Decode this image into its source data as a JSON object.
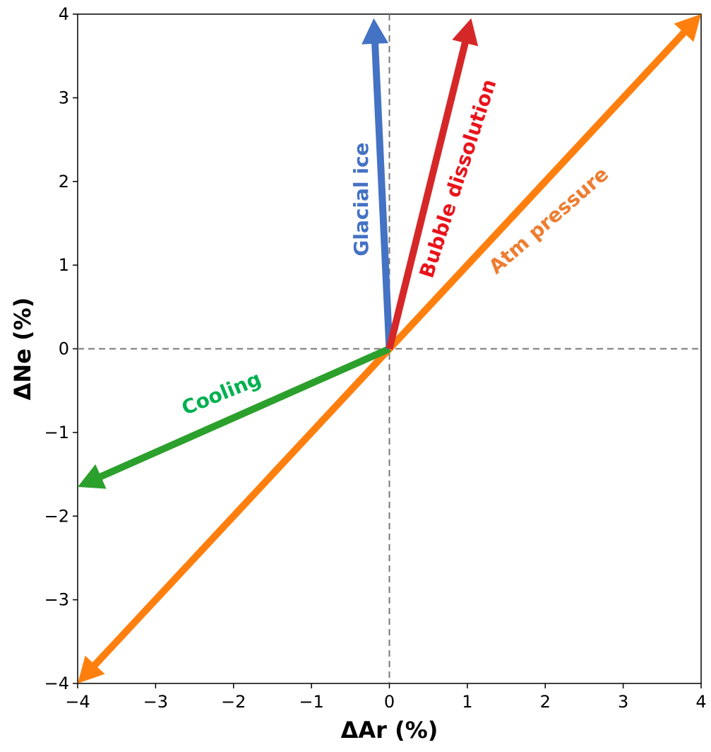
{
  "chart_data": {
    "type": "vector",
    "xlabel": "ΔAr (%)",
    "ylabel": "ΔNe (%)",
    "xlim": [
      -4,
      4
    ],
    "ylim": [
      -4,
      4
    ],
    "x_ticks": [
      "−4",
      "−3",
      "−2",
      "−1",
      "0",
      "1",
      "2",
      "3",
      "4"
    ],
    "y_ticks": [
      "−4",
      "−3",
      "−2",
      "−1",
      "0",
      "1",
      "2",
      "3",
      "4"
    ],
    "reference_lines": [
      {
        "orientation": "horizontal",
        "value": 0,
        "style": "dashed"
      },
      {
        "orientation": "vertical",
        "value": 0,
        "style": "dashed"
      }
    ],
    "series": [
      {
        "name": "Glacial ice",
        "x": [
          0,
          -0.2
        ],
        "y": [
          0,
          3.95
        ],
        "color": "#4472c4",
        "label_color": "#4472c4"
      },
      {
        "name": "Bubble dissolution",
        "x": [
          0,
          1.05
        ],
        "y": [
          0,
          3.95
        ],
        "color": "#d62728",
        "label_color": "#e8141c"
      },
      {
        "name": "Atm pressure",
        "x": [
          -4,
          4
        ],
        "y": [
          -4,
          4
        ],
        "color": "#ff7f0e",
        "label_color": "#ed7d31",
        "double_headed": true
      },
      {
        "name": "Cooling",
        "x": [
          0,
          -4
        ],
        "y": [
          0,
          -1.65
        ],
        "color": "#2ca02c",
        "label_color": "#00b050"
      }
    ]
  }
}
